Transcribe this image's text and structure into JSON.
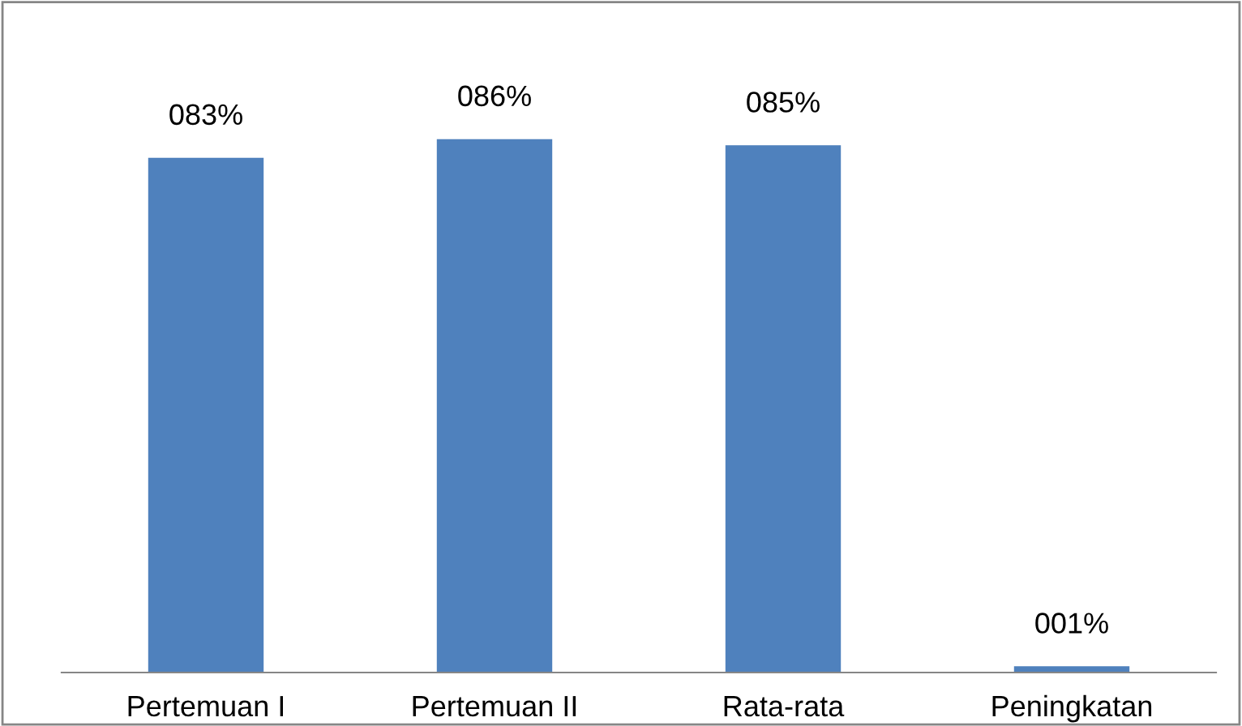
{
  "chart_data": {
    "type": "bar",
    "categories": [
      "Pertemuan I",
      "Pertemuan II",
      "Rata-rata",
      "Peningkatan"
    ],
    "values": [
      83,
      86,
      85,
      1
    ],
    "value_labels": [
      "083%",
      "086%",
      "085%",
      "001%"
    ],
    "color": "#4f81bd",
    "grid": false,
    "legend": false
  }
}
